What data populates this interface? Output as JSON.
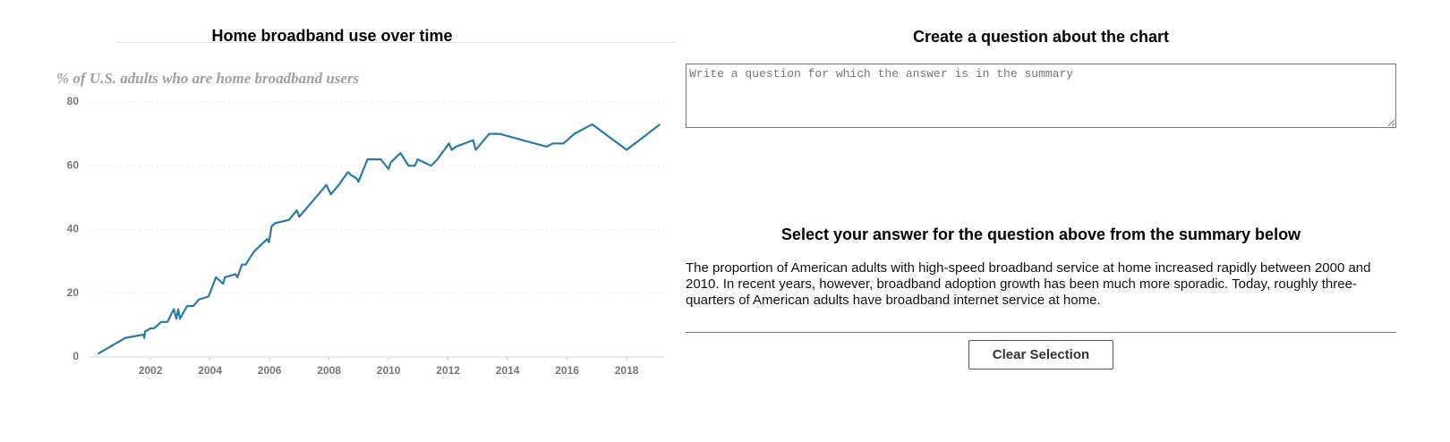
{
  "chart_data": {
    "type": "line",
    "title": "Home broadband use over time",
    "subtitle": "% of U.S. adults who are home broadband users",
    "x": [
      2000.23,
      2001.16,
      2001.76,
      2001.79,
      2001.82,
      2002.0,
      2002.12,
      2002.36,
      2002.57,
      2002.78,
      2002.87,
      2002.93,
      2002.99,
      2003.23,
      2003.44,
      2003.62,
      2003.95,
      2004.2,
      2004.44,
      2004.5,
      2004.86,
      2004.92,
      2005.07,
      2005.2,
      2005.47,
      2005.92,
      2005.98,
      2006.07,
      2006.19,
      2006.65,
      2006.92,
      2007.0,
      2007.64,
      2007.91,
      2008.06,
      2008.33,
      2008.63,
      2008.75,
      2008.93,
      2008.99,
      2009.29,
      2009.74,
      2010.0,
      2010.07,
      2010.4,
      2010.67,
      2010.88,
      2010.98,
      2011.43,
      2011.64,
      2012.03,
      2012.12,
      2012.27,
      2012.84,
      2012.93,
      2013.38,
      2013.74,
      2015.31,
      2015.52,
      2015.88,
      2016.24,
      2016.84,
      2018.0,
      2019.12
    ],
    "values": [
      1,
      6,
      7,
      6,
      8,
      9,
      9,
      11,
      11,
      15,
      12,
      15,
      12,
      16,
      16,
      18,
      19,
      25,
      23,
      25,
      26,
      25,
      29,
      29,
      33,
      37,
      36,
      41,
      42,
      43,
      46,
      44,
      51,
      54,
      51,
      54,
      58,
      57,
      56,
      55,
      62,
      62,
      59,
      61,
      64,
      60,
      60,
      62,
      60,
      62,
      67,
      65,
      66,
      68,
      65,
      70,
      70,
      66,
      67,
      67,
      70,
      73,
      65,
      73
    ],
    "color": "#2a7aa8",
    "xlim": [
      1999.95,
      2019.26
    ],
    "xticks": [
      2002,
      2004,
      2006,
      2008,
      2010,
      2012,
      2014,
      2016,
      2018
    ],
    "ylim": [
      0,
      80
    ],
    "yticks": [
      0,
      20,
      40,
      60,
      80
    ],
    "grid": true
  },
  "question": {
    "heading": "Create a question about the chart",
    "placeholder": "Write a question for which the answer is in the summary"
  },
  "answer": {
    "heading": "Select your answer for the question above from the summary below",
    "summary": "The proportion of American adults with high-speed broadband service at home increased rapidly between 2000 and 2010. In recent years, however, broadband adoption growth has been much more sporadic. Today, roughly three-quarters of American adults have broadband internet service at home."
  },
  "button": "Clear Selection"
}
